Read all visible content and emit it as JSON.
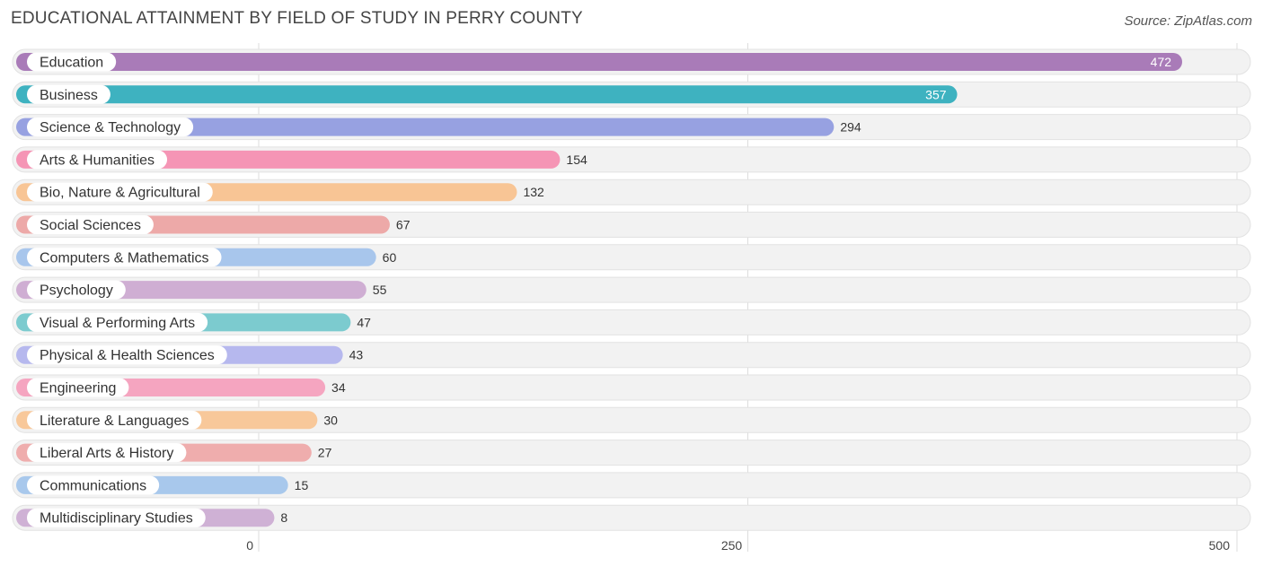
{
  "header": {
    "title": "EDUCATIONAL ATTAINMENT BY FIELD OF STUDY IN PERRY COUNTY",
    "source": "Source: ZipAtlas.com"
  },
  "chart_data": {
    "type": "bar",
    "orientation": "horizontal",
    "title": "EDUCATIONAL ATTAINMENT BY FIELD OF STUDY IN PERRY COUNTY",
    "categories": [
      "Education",
      "Business",
      "Science & Technology",
      "Arts & Humanities",
      "Bio, Nature & Agricultural",
      "Social Sciences",
      "Computers & Mathematics",
      "Psychology",
      "Visual & Performing Arts",
      "Physical & Health Sciences",
      "Engineering",
      "Literature & Languages",
      "Liberal Arts & History",
      "Communications",
      "Multidisciplinary Studies"
    ],
    "values": [
      472,
      357,
      294,
      154,
      132,
      67,
      60,
      55,
      47,
      43,
      34,
      30,
      27,
      15,
      8
    ],
    "colors": [
      "#a97bb8",
      "#3eb2c0",
      "#97a1e1",
      "#f595b5",
      "#f8c595",
      "#eda9a8",
      "#a8c6ec",
      "#cfaed3",
      "#7ccbcf",
      "#b6b8ee",
      "#f5a5c0",
      "#f8c89a",
      "#efadad",
      "#a8c8ec",
      "#cfb1d5"
    ],
    "xlim": [
      0,
      500
    ],
    "xticks": [
      0,
      250,
      500
    ],
    "grid": true,
    "legend": "none"
  }
}
